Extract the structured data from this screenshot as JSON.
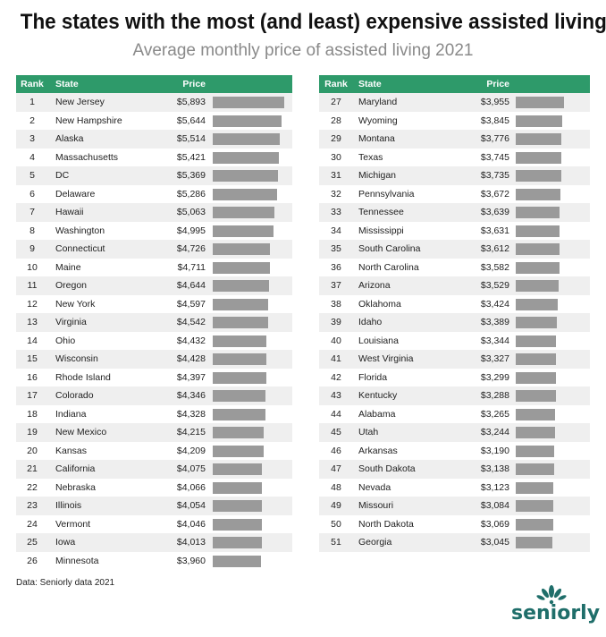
{
  "title": "The states with the most (and least) expensive assisted living",
  "subtitle": "Average monthly price of assisted living 2021",
  "source": "Data: Seniorly data 2021",
  "logo_text": "seniorly",
  "colors": {
    "header": "#2e9a6a",
    "bar": "#9a9a9a",
    "row_shade": "#efefef",
    "logo": "#1f6e6a"
  },
  "headers": {
    "rank": "Rank",
    "state": "State",
    "price": "Price"
  },
  "chart_data": {
    "type": "table",
    "title": "The states with the most (and least) expensive assisted living",
    "subtitle": "Average monthly price of assisted living 2021",
    "columns": [
      "Rank",
      "State",
      "Price"
    ],
    "bar_scale_min": 0,
    "rows": [
      {
        "rank": "1",
        "state": "New Jersey",
        "price": "$5,893",
        "value": 5893
      },
      {
        "rank": "2",
        "state": "New Hampshire",
        "price": "$5,644",
        "value": 5644
      },
      {
        "rank": "3",
        "state": "Alaska",
        "price": "$5,514",
        "value": 5514
      },
      {
        "rank": "4",
        "state": "Massachusetts",
        "price": "$5,421",
        "value": 5421
      },
      {
        "rank": "5",
        "state": "DC",
        "price": "$5,369",
        "value": 5369
      },
      {
        "rank": "6",
        "state": "Delaware",
        "price": "$5,286",
        "value": 5286
      },
      {
        "rank": "7",
        "state": "Hawaii",
        "price": "$5,063",
        "value": 5063
      },
      {
        "rank": "8",
        "state": "Washington",
        "price": "$4,995",
        "value": 4995
      },
      {
        "rank": "9",
        "state": "Connecticut",
        "price": "$4,726",
        "value": 4726
      },
      {
        "rank": "10",
        "state": "Maine",
        "price": "$4,711",
        "value": 4711
      },
      {
        "rank": "11",
        "state": "Oregon",
        "price": "$4,644",
        "value": 4644
      },
      {
        "rank": "12",
        "state": "New York",
        "price": "$4,597",
        "value": 4597
      },
      {
        "rank": "13",
        "state": "Virginia",
        "price": "$4,542",
        "value": 4542
      },
      {
        "rank": "14",
        "state": "Ohio",
        "price": "$4,432",
        "value": 4432
      },
      {
        "rank": "15",
        "state": "Wisconsin",
        "price": "$4,428",
        "value": 4428
      },
      {
        "rank": "16",
        "state": "Rhode Island",
        "price": "$4,397",
        "value": 4397
      },
      {
        "rank": "17",
        "state": "Colorado",
        "price": "$4,346",
        "value": 4346
      },
      {
        "rank": "18",
        "state": "Indiana",
        "price": "$4,328",
        "value": 4328
      },
      {
        "rank": "19",
        "state": "New Mexico",
        "price": "$4,215",
        "value": 4215
      },
      {
        "rank": "20",
        "state": "Kansas",
        "price": "$4,209",
        "value": 4209
      },
      {
        "rank": "21",
        "state": "California",
        "price": "$4,075",
        "value": 4075
      },
      {
        "rank": "22",
        "state": "Nebraska",
        "price": "$4,066",
        "value": 4066
      },
      {
        "rank": "23",
        "state": "Illinois",
        "price": "$4,054",
        "value": 4054
      },
      {
        "rank": "24",
        "state": "Vermont",
        "price": "$4,046",
        "value": 4046
      },
      {
        "rank": "25",
        "state": "Iowa",
        "price": "$4,013",
        "value": 4013
      },
      {
        "rank": "26",
        "state": "Minnesota",
        "price": "$3,960",
        "value": 3960
      },
      {
        "rank": "27",
        "state": "Maryland",
        "price": "$3,955",
        "value": 3955
      },
      {
        "rank": "28",
        "state": "Wyoming",
        "price": "$3,845",
        "value": 3845
      },
      {
        "rank": "29",
        "state": "Montana",
        "price": "$3,776",
        "value": 3776
      },
      {
        "rank": "30",
        "state": "Texas",
        "price": "$3,745",
        "value": 3745
      },
      {
        "rank": "31",
        "state": "Michigan",
        "price": "$3,735",
        "value": 3735
      },
      {
        "rank": "32",
        "state": "Pennsylvania",
        "price": "$3,672",
        "value": 3672
      },
      {
        "rank": "33",
        "state": "Tennessee",
        "price": "$3,639",
        "value": 3639
      },
      {
        "rank": "34",
        "state": "Mississippi",
        "price": "$3,631",
        "value": 3631
      },
      {
        "rank": "35",
        "state": "South Carolina",
        "price": "$3,612",
        "value": 3612
      },
      {
        "rank": "36",
        "state": "North Carolina",
        "price": "$3,582",
        "value": 3582
      },
      {
        "rank": "37",
        "state": "Arizona",
        "price": "$3,529",
        "value": 3529
      },
      {
        "rank": "38",
        "state": "Oklahoma",
        "price": "$3,424",
        "value": 3424
      },
      {
        "rank": "39",
        "state": "Idaho",
        "price": "$3,389",
        "value": 3389
      },
      {
        "rank": "40",
        "state": "Louisiana",
        "price": "$3,344",
        "value": 3344
      },
      {
        "rank": "41",
        "state": "West Virginia",
        "price": "$3,327",
        "value": 3327
      },
      {
        "rank": "42",
        "state": "Florida",
        "price": "$3,299",
        "value": 3299
      },
      {
        "rank": "43",
        "state": "Kentucky",
        "price": "$3,288",
        "value": 3288
      },
      {
        "rank": "44",
        "state": "Alabama",
        "price": "$3,265",
        "value": 3265
      },
      {
        "rank": "45",
        "state": "Utah",
        "price": "$3,244",
        "value": 3244
      },
      {
        "rank": "46",
        "state": "Arkansas",
        "price": "$3,190",
        "value": 3190
      },
      {
        "rank": "47",
        "state": "South Dakota",
        "price": "$3,138",
        "value": 3138
      },
      {
        "rank": "48",
        "state": "Nevada",
        "price": "$3,123",
        "value": 3123
      },
      {
        "rank": "49",
        "state": "Missouri",
        "price": "$3,084",
        "value": 3084
      },
      {
        "rank": "50",
        "state": "North Dakota",
        "price": "$3,069",
        "value": 3069
      },
      {
        "rank": "51",
        "state": "Georgia",
        "price": "$3,045",
        "value": 3045
      }
    ]
  }
}
